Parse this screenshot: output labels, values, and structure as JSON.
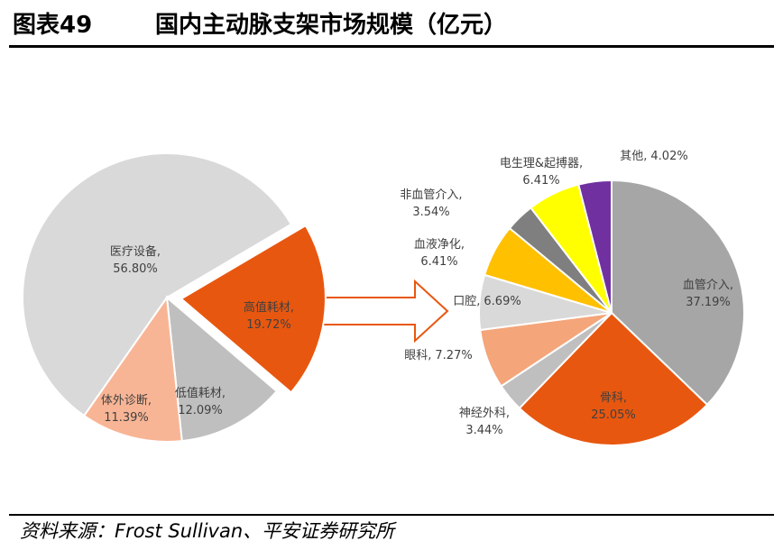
{
  "header": {
    "figure": "图表49",
    "title": "国内主动脉支架市场规模（亿元）"
  },
  "chart_data": [
    {
      "type": "pie",
      "categories": [
        "医疗设备,",
        "高值耗材,",
        "低值耗材,",
        "体外诊断,"
      ],
      "values": [
        56.8,
        19.72,
        12.09,
        11.39
      ],
      "value_labels": [
        "56.80%",
        "19.72%",
        "12.09%",
        "11.39%"
      ],
      "colors": [
        "#d9d9d9",
        "#e8570f",
        "#bfbfbf",
        "#f8b595"
      ]
    },
    {
      "type": "pie",
      "categories": [
        "血管介入,",
        "骨科,",
        "神经外科,",
        "眼科,",
        "口腔,",
        "血液净化,",
        "非血管介入,",
        "电生理&起搏器,",
        "其他,"
      ],
      "values": [
        37.19,
        25.05,
        3.44,
        7.27,
        6.69,
        6.41,
        3.54,
        6.41,
        4.02
      ],
      "value_labels": [
        "37.19%",
        "25.05%",
        "3.44%",
        "7.27%",
        "6.69%",
        "6.41%",
        "3.54%",
        "6.41%",
        "4.02%"
      ],
      "colors": [
        "#a6a6a6",
        "#e8570f",
        "#bfbfbf",
        "#f4a57a",
        "#d9d9d9",
        "#ffc000",
        "#7f7f7f",
        "#ffff00",
        "#7030a0"
      ]
    }
  ],
  "source": "资料来源：Frost Sullivan、平安证券研究所"
}
